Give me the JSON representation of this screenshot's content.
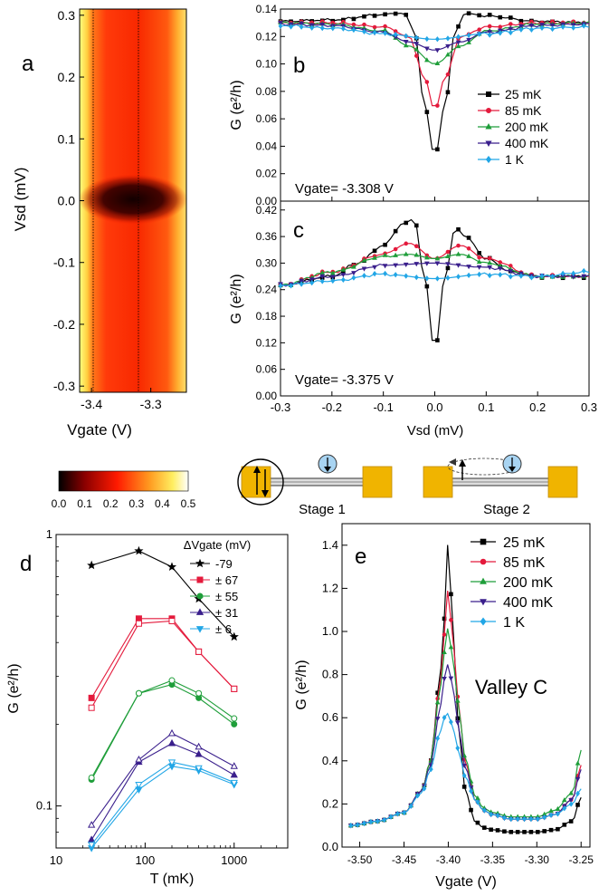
{
  "colors": {
    "c25mK": "#000000",
    "c85mK": "#e41a3c",
    "c200mK": "#1f9e3a",
    "c400mK": "#3a1f8c",
    "c1K": "#22a6e6",
    "pad": "#f0b400",
    "electron": "#a8d4f2"
  },
  "chart_data": [
    {
      "panel": "a",
      "type": "heatmap",
      "xlabel": "Vgate (V)",
      "ylabel": "Vsd (mV)",
      "xlim": [
        -3.42,
        -3.24
      ],
      "ylim": [
        -0.31,
        0.31
      ],
      "xticks": [
        "-3.4",
        "-3.3"
      ],
      "yticks": [
        "-0.3",
        "-0.2",
        "-0.1",
        "0.0",
        "0.1",
        "0.2",
        "0.3"
      ],
      "dotted_lines_vgate": [
        -3.375,
        -3.308
      ],
      "colorbar": {
        "ticks": [
          "0.0",
          "0.1",
          "0.2",
          "0.3",
          "0.4",
          "0.5"
        ],
        "range": [
          0,
          0.5
        ]
      }
    },
    {
      "panel": "b",
      "type": "line",
      "ylabel": "G (e²/h)",
      "annotation": "Vgate= -3.308 V",
      "xlim": [
        -0.3,
        0.3
      ],
      "ylim": [
        0,
        0.14
      ],
      "yticks": [
        "0.00",
        "0.02",
        "0.04",
        "0.06",
        "0.08",
        "0.10",
        "0.12",
        "0.14"
      ],
      "legend": "inside right",
      "series": [
        {
          "name": "25 mK",
          "x": [
            -0.3,
            -0.2,
            -0.1,
            -0.06,
            -0.04,
            -0.02,
            0.0,
            0.02,
            0.04,
            0.06,
            0.1,
            0.2,
            0.3
          ],
          "y": [
            0.131,
            0.132,
            0.136,
            0.137,
            0.125,
            0.07,
            0.032,
            0.07,
            0.125,
            0.137,
            0.135,
            0.131,
            0.13
          ]
        },
        {
          "name": "85 mK",
          "x": [
            -0.3,
            -0.2,
            -0.1,
            -0.05,
            -0.02,
            0.0,
            0.02,
            0.05,
            0.1,
            0.2,
            0.3
          ],
          "y": [
            0.13,
            0.13,
            0.127,
            0.12,
            0.09,
            0.066,
            0.09,
            0.12,
            0.127,
            0.13,
            0.13
          ]
        },
        {
          "name": "200 mK",
          "x": [
            -0.3,
            -0.2,
            -0.1,
            -0.05,
            0.0,
            0.05,
            0.1,
            0.2,
            0.3
          ],
          "y": [
            0.13,
            0.129,
            0.124,
            0.113,
            0.1,
            0.113,
            0.124,
            0.129,
            0.13
          ]
        },
        {
          "name": "400 mK",
          "x": [
            -0.3,
            -0.2,
            -0.1,
            -0.05,
            0.0,
            0.05,
            0.1,
            0.2,
            0.3
          ],
          "y": [
            0.129,
            0.128,
            0.123,
            0.116,
            0.11,
            0.116,
            0.123,
            0.128,
            0.129
          ]
        },
        {
          "name": "1 K",
          "x": [
            -0.3,
            -0.2,
            -0.1,
            0.0,
            0.1,
            0.2,
            0.3
          ],
          "y": [
            0.128,
            0.126,
            0.122,
            0.118,
            0.122,
            0.126,
            0.127
          ]
        }
      ]
    },
    {
      "panel": "c",
      "type": "line",
      "xlabel": "Vsd (mV)",
      "ylabel": "G (e²/h)",
      "annotation": "Vgate= -3.375 V",
      "xlim": [
        -0.3,
        0.3
      ],
      "ylim": [
        0,
        0.44
      ],
      "xticks": [
        "-0.3",
        "-0.2",
        "-0.1",
        "0.0",
        "0.1",
        "0.2",
        "0.3"
      ],
      "yticks": [
        "0.00",
        "0.06",
        "0.12",
        "0.18",
        "0.24",
        "0.30",
        "0.36",
        "0.42"
      ],
      "series": [
        {
          "name": "25 mK",
          "x": [
            -0.3,
            -0.2,
            -0.15,
            -0.1,
            -0.06,
            -0.04,
            -0.02,
            0.0,
            0.02,
            0.04,
            0.06,
            0.1,
            0.15,
            0.2,
            0.3
          ],
          "y": [
            0.25,
            0.27,
            0.3,
            0.34,
            0.39,
            0.4,
            0.27,
            0.1,
            0.27,
            0.38,
            0.36,
            0.31,
            0.28,
            0.27,
            0.27
          ]
        },
        {
          "name": "85 mK",
          "x": [
            -0.3,
            -0.2,
            -0.1,
            -0.05,
            0.0,
            0.05,
            0.1,
            0.2,
            0.3
          ],
          "y": [
            0.25,
            0.28,
            0.32,
            0.345,
            0.31,
            0.34,
            0.31,
            0.27,
            0.27
          ]
        },
        {
          "name": "200 mK",
          "x": [
            -0.3,
            -0.2,
            -0.1,
            -0.05,
            0.0,
            0.05,
            0.1,
            0.2,
            0.3
          ],
          "y": [
            0.25,
            0.28,
            0.315,
            0.32,
            0.31,
            0.32,
            0.3,
            0.27,
            0.27
          ]
        },
        {
          "name": "400 mK",
          "x": [
            -0.3,
            -0.2,
            -0.1,
            0.0,
            0.1,
            0.2,
            0.3
          ],
          "y": [
            0.25,
            0.27,
            0.295,
            0.3,
            0.29,
            0.27,
            0.27
          ]
        },
        {
          "name": "1 K",
          "x": [
            -0.3,
            -0.2,
            -0.1,
            0.0,
            0.1,
            0.2,
            0.3
          ],
          "y": [
            0.25,
            0.26,
            0.275,
            0.265,
            0.275,
            0.27,
            0.28
          ]
        }
      ]
    },
    {
      "panel": "d",
      "type": "line",
      "xlabel": "T (mK)",
      "ylabel": "G (e²/h)",
      "xscale": "log",
      "yscale": "log",
      "xlim": [
        10,
        4000
      ],
      "ylim": [
        0.07,
        1
      ],
      "xticks": [
        "10",
        "100",
        "1000"
      ],
      "yticks": [
        "0.1",
        "1"
      ],
      "legend_title": "ΔVgate (mV)",
      "legend": "inside top-right",
      "x": [
        25,
        85,
        200,
        400,
        1000
      ],
      "series": [
        {
          "name": "-79",
          "marker": "star",
          "values": [
            0.77,
            0.87,
            0.76,
            0.58,
            0.42
          ]
        },
        {
          "name": "± 67",
          "marker": "square",
          "values": [
            0.25,
            0.49,
            0.49,
            0.37,
            0.27
          ]
        },
        {
          "name": "± 67 (open)",
          "marker": "square-open",
          "values": [
            0.23,
            0.47,
            0.48,
            0.37,
            0.27
          ]
        },
        {
          "name": "± 55",
          "marker": "circle",
          "values": [
            0.125,
            0.26,
            0.28,
            0.25,
            0.2
          ]
        },
        {
          "name": "± 55 (open)",
          "marker": "circle-open",
          "values": [
            0.127,
            0.26,
            0.29,
            0.26,
            0.21
          ]
        },
        {
          "name": "± 31",
          "marker": "triangle",
          "values": [
            0.075,
            0.145,
            0.17,
            0.155,
            0.13
          ]
        },
        {
          "name": "± 31 (open)",
          "marker": "triangle-open",
          "values": [
            0.085,
            0.148,
            0.185,
            0.165,
            0.14
          ]
        },
        {
          "name": "± 6",
          "marker": "triangle-down",
          "values": [
            0.07,
            0.115,
            0.14,
            0.135,
            0.12
          ]
        },
        {
          "name": "± 6 (open)",
          "marker": "triangle-down-open",
          "values": [
            0.072,
            0.12,
            0.145,
            0.138,
            0.122
          ]
        }
      ]
    },
    {
      "panel": "e",
      "type": "line",
      "xlabel": "Vgate (V)",
      "ylabel": "G (e²/h)",
      "annotation": "Valley C",
      "xlim": [
        -3.52,
        -3.24
      ],
      "ylim": [
        0,
        1.5
      ],
      "xticks": [
        "-3.50",
        "-3.45",
        "-3.40",
        "-3.35",
        "-3.30",
        "-3.25"
      ],
      "yticks": [
        "0.0",
        "0.2",
        "0.4",
        "0.6",
        "0.8",
        "1.0",
        "1.2",
        "1.4"
      ],
      "legend": "top-right",
      "series": [
        {
          "name": "25 mK",
          "x": [
            -3.51,
            -3.48,
            -3.45,
            -3.43,
            -3.42,
            -3.41,
            -3.405,
            -3.4,
            -3.395,
            -3.39,
            -3.38,
            -3.37,
            -3.36,
            -3.35,
            -3.33,
            -3.3,
            -3.28,
            -3.26,
            -3.25
          ],
          "y": [
            0.1,
            0.12,
            0.16,
            0.26,
            0.4,
            0.75,
            1.05,
            1.42,
            1.05,
            0.6,
            0.25,
            0.12,
            0.09,
            0.08,
            0.07,
            0.07,
            0.08,
            0.12,
            0.23
          ]
        },
        {
          "name": "85 mK",
          "x": [
            -3.51,
            -3.48,
            -3.45,
            -3.43,
            -3.42,
            -3.41,
            -3.405,
            -3.4,
            -3.395,
            -3.39,
            -3.38,
            -3.37,
            -3.36,
            -3.35,
            -3.33,
            -3.3,
            -3.28,
            -3.26,
            -3.25
          ],
          "y": [
            0.1,
            0.12,
            0.16,
            0.26,
            0.4,
            0.72,
            0.98,
            1.2,
            0.98,
            0.7,
            0.38,
            0.22,
            0.17,
            0.15,
            0.13,
            0.13,
            0.15,
            0.22,
            0.38
          ]
        },
        {
          "name": "200 mK",
          "x": [
            -3.51,
            -3.48,
            -3.45,
            -3.43,
            -3.42,
            -3.41,
            -3.405,
            -3.4,
            -3.395,
            -3.39,
            -3.38,
            -3.37,
            -3.36,
            -3.35,
            -3.33,
            -3.3,
            -3.28,
            -3.26,
            -3.25
          ],
          "y": [
            0.1,
            0.12,
            0.16,
            0.26,
            0.4,
            0.7,
            0.9,
            1.02,
            0.88,
            0.68,
            0.4,
            0.24,
            0.18,
            0.16,
            0.14,
            0.14,
            0.17,
            0.25,
            0.45
          ]
        },
        {
          "name": "400 mK",
          "x": [
            -3.51,
            -3.48,
            -3.45,
            -3.43,
            -3.42,
            -3.41,
            -3.405,
            -3.4,
            -3.395,
            -3.39,
            -3.38,
            -3.37,
            -3.36,
            -3.35,
            -3.33,
            -3.3,
            -3.28,
            -3.26,
            -3.25
          ],
          "y": [
            0.1,
            0.12,
            0.16,
            0.26,
            0.38,
            0.62,
            0.78,
            0.85,
            0.75,
            0.58,
            0.36,
            0.22,
            0.17,
            0.15,
            0.13,
            0.13,
            0.15,
            0.22,
            0.36
          ]
        },
        {
          "name": "1 K",
          "x": [
            -3.51,
            -3.48,
            -3.45,
            -3.43,
            -3.42,
            -3.41,
            -3.405,
            -3.4,
            -3.395,
            -3.39,
            -3.38,
            -3.37,
            -3.36,
            -3.35,
            -3.33,
            -3.3,
            -3.28,
            -3.26,
            -3.25
          ],
          "y": [
            0.1,
            0.12,
            0.16,
            0.25,
            0.36,
            0.52,
            0.6,
            0.62,
            0.56,
            0.46,
            0.32,
            0.22,
            0.17,
            0.15,
            0.13,
            0.13,
            0.15,
            0.2,
            0.27
          ]
        }
      ]
    }
  ],
  "panel_labels": {
    "a": "a",
    "b": "b",
    "c": "c",
    "d": "d",
    "e": "e"
  },
  "schematic": {
    "stage1": "Stage 1",
    "stage2": "Stage 2"
  }
}
